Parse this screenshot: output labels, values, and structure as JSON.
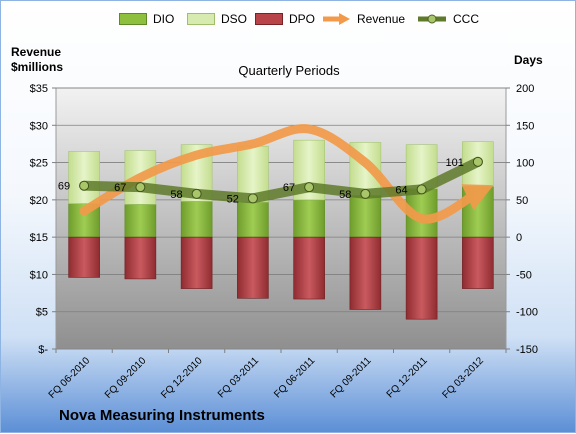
{
  "legend": {
    "items": [
      {
        "label": "DIO",
        "color": "#8fbf3f",
        "kind": "box"
      },
      {
        "label": "DSO",
        "color": "#d7ebb0",
        "kind": "box"
      },
      {
        "label": "DPO",
        "color": "#b8444a",
        "kind": "box"
      },
      {
        "label": "Revenue",
        "color": "#f29a4a",
        "kind": "arrow"
      },
      {
        "label": "CCC",
        "color": "#5e7a2a",
        "kind": "line"
      }
    ]
  },
  "left_axis_caption": {
    "line1": "Revenue",
    "line2": "$millions"
  },
  "right_axis_caption": "Days",
  "company": "Nova Measuring Instruments",
  "chart_data": {
    "type": "bar",
    "title": "Quarterly Periods",
    "categories": [
      "FQ 06-2010",
      "FQ 09-2010",
      "FQ 12-2010",
      "FQ 03-2011",
      "FQ 06-2011",
      "FQ 09-2011",
      "FQ 12-2011",
      "FQ 03-2012"
    ],
    "series": [
      {
        "name": "DIO",
        "axis": "right",
        "values": [
          45,
          44,
          48,
          47,
          50,
          56,
          65,
          68
        ]
      },
      {
        "name": "DSO",
        "axis": "right",
        "values": [
          70,
          72,
          76,
          75,
          80,
          71,
          59,
          60
        ]
      },
      {
        "name": "DPO",
        "axis": "right",
        "values": [
          -54,
          -56,
          -69,
          -82,
          -83,
          -97,
          -110,
          -69
        ]
      },
      {
        "name": "CCC",
        "axis": "right",
        "values": [
          69,
          67,
          58,
          52,
          67,
          58,
          64,
          101
        ]
      },
      {
        "name": "Revenue",
        "axis": "left",
        "values": [
          18.5,
          23,
          26,
          27.5,
          29.5,
          25,
          17.5,
          21
        ]
      }
    ],
    "ccc_labels": [
      "69",
      "67",
      "58",
      "52",
      "67",
      "58",
      "64",
      "101"
    ],
    "left_axis": {
      "ylim": [
        0,
        35
      ],
      "ticks": [
        "$-",
        "$5",
        "$10",
        "$15",
        "$20",
        "$25",
        "$30",
        "$35"
      ]
    },
    "right_axis": {
      "ylim": [
        -150,
        200
      ],
      "ticks": [
        "-150",
        "-100",
        "-50",
        "0",
        "50",
        "100",
        "150",
        "200"
      ]
    },
    "grid": true
  }
}
